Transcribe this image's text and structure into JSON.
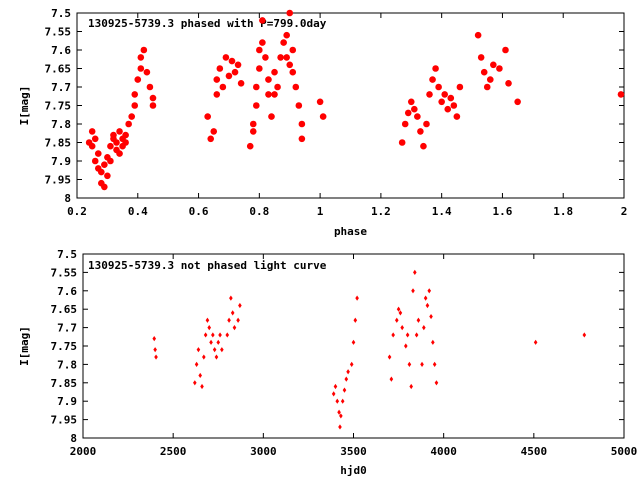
{
  "chart_data": [
    {
      "type": "scatter",
      "title": "130925-5739.3 phased with P=799.0day",
      "xlabel": "phase",
      "ylabel": "I[mag]",
      "xlim": [
        0.2,
        2.0
      ],
      "ylim": [
        7.5,
        8.0
      ],
      "y_inverted": true,
      "grid": false,
      "marker_color": "#ff0000",
      "marker": "filled-circle",
      "x_ticks": [
        "0.2",
        "0.4",
        "0.6",
        "0.8",
        "1",
        "1.2",
        "1.4",
        "1.6",
        "1.8",
        "2"
      ],
      "y_ticks": [
        "7.5",
        "7.55",
        "7.6",
        "7.65",
        "7.7",
        "7.75",
        "7.8",
        "7.85",
        "7.9",
        "7.95",
        "8"
      ],
      "points": [
        [
          0.24,
          7.85
        ],
        [
          0.25,
          7.86
        ],
        [
          0.25,
          7.82
        ],
        [
          0.26,
          7.84
        ],
        [
          0.26,
          7.9
        ],
        [
          0.27,
          7.88
        ],
        [
          0.27,
          7.92
        ],
        [
          0.28,
          7.93
        ],
        [
          0.28,
          7.96
        ],
        [
          0.29,
          7.91
        ],
        [
          0.29,
          7.97
        ],
        [
          0.3,
          7.94
        ],
        [
          0.3,
          7.89
        ],
        [
          0.31,
          7.9
        ],
        [
          0.31,
          7.86
        ],
        [
          0.32,
          7.84
        ],
        [
          0.32,
          7.83
        ],
        [
          0.33,
          7.87
        ],
        [
          0.33,
          7.85
        ],
        [
          0.34,
          7.88
        ],
        [
          0.34,
          7.82
        ],
        [
          0.35,
          7.86
        ],
        [
          0.35,
          7.84
        ],
        [
          0.36,
          7.83
        ],
        [
          0.36,
          7.85
        ],
        [
          0.37,
          7.8
        ],
        [
          0.38,
          7.78
        ],
        [
          0.39,
          7.75
        ],
        [
          0.39,
          7.72
        ],
        [
          0.4,
          7.68
        ],
        [
          0.41,
          7.62
        ],
        [
          0.41,
          7.65
        ],
        [
          0.42,
          7.6
        ],
        [
          0.43,
          7.66
        ],
        [
          0.44,
          7.7
        ],
        [
          0.45,
          7.73
        ],
        [
          0.45,
          7.75
        ],
        [
          0.63,
          7.78
        ],
        [
          0.64,
          7.84
        ],
        [
          0.65,
          7.82
        ],
        [
          0.66,
          7.72
        ],
        [
          0.66,
          7.68
        ],
        [
          0.67,
          7.65
        ],
        [
          0.68,
          7.7
        ],
        [
          0.69,
          7.62
        ],
        [
          0.7,
          7.67
        ],
        [
          0.71,
          7.63
        ],
        [
          0.72,
          7.66
        ],
        [
          0.73,
          7.64
        ],
        [
          0.74,
          7.69
        ],
        [
          0.77,
          7.86
        ],
        [
          0.78,
          7.82
        ],
        [
          0.78,
          7.8
        ],
        [
          0.79,
          7.75
        ],
        [
          0.79,
          7.7
        ],
        [
          0.8,
          7.65
        ],
        [
          0.8,
          7.6
        ],
        [
          0.81,
          7.58
        ],
        [
          0.81,
          7.52
        ],
        [
          0.82,
          7.62
        ],
        [
          0.83,
          7.68
        ],
        [
          0.83,
          7.72
        ],
        [
          0.84,
          7.78
        ],
        [
          0.85,
          7.72
        ],
        [
          0.85,
          7.66
        ],
        [
          0.86,
          7.7
        ],
        [
          0.87,
          7.62
        ],
        [
          0.88,
          7.58
        ],
        [
          0.89,
          7.56
        ],
        [
          0.89,
          7.62
        ],
        [
          0.9,
          7.5
        ],
        [
          0.9,
          7.64
        ],
        [
          0.91,
          7.6
        ],
        [
          0.91,
          7.66
        ],
        [
          0.92,
          7.7
        ],
        [
          0.93,
          7.75
        ],
        [
          0.94,
          7.8
        ],
        [
          0.94,
          7.84
        ],
        [
          1.0,
          7.74
        ],
        [
          1.01,
          7.78
        ],
        [
          1.27,
          7.85
        ],
        [
          1.28,
          7.8
        ],
        [
          1.29,
          7.77
        ],
        [
          1.3,
          7.74
        ],
        [
          1.31,
          7.76
        ],
        [
          1.32,
          7.78
        ],
        [
          1.33,
          7.82
        ],
        [
          1.34,
          7.86
        ],
        [
          1.35,
          7.8
        ],
        [
          1.36,
          7.72
        ],
        [
          1.37,
          7.68
        ],
        [
          1.38,
          7.65
        ],
        [
          1.39,
          7.7
        ],
        [
          1.4,
          7.74
        ],
        [
          1.41,
          7.72
        ],
        [
          1.42,
          7.76
        ],
        [
          1.43,
          7.73
        ],
        [
          1.44,
          7.75
        ],
        [
          1.45,
          7.78
        ],
        [
          1.46,
          7.7
        ],
        [
          1.52,
          7.56
        ],
        [
          1.53,
          7.62
        ],
        [
          1.54,
          7.66
        ],
        [
          1.55,
          7.7
        ],
        [
          1.56,
          7.68
        ],
        [
          1.57,
          7.64
        ],
        [
          1.59,
          7.65
        ],
        [
          1.61,
          7.6
        ],
        [
          1.62,
          7.69
        ],
        [
          1.65,
          7.74
        ],
        [
          1.99,
          7.72
        ]
      ]
    },
    {
      "type": "scatter",
      "title": "130925-5739.3 not phased light curve",
      "xlabel": "hjd0",
      "ylabel": "I[mag]",
      "xlim": [
        2000,
        5000
      ],
      "ylim": [
        7.5,
        8.0
      ],
      "y_inverted": true,
      "grid": false,
      "marker_color": "#ff0000",
      "marker": "diamond",
      "x_ticks": [
        "2000",
        "2500",
        "3000",
        "3500",
        "4000",
        "4500",
        "5000"
      ],
      "y_ticks": [
        "7.5",
        "7.55",
        "7.6",
        "7.65",
        "7.7",
        "7.75",
        "7.8",
        "7.85",
        "7.9",
        "7.95",
        "8"
      ],
      "points": [
        [
          2395,
          7.73
        ],
        [
          2400,
          7.76
        ],
        [
          2405,
          7.78
        ],
        [
          2620,
          7.85
        ],
        [
          2630,
          7.8
        ],
        [
          2640,
          7.76
        ],
        [
          2650,
          7.83
        ],
        [
          2660,
          7.86
        ],
        [
          2670,
          7.78
        ],
        [
          2680,
          7.72
        ],
        [
          2690,
          7.68
        ],
        [
          2700,
          7.7
        ],
        [
          2710,
          7.74
        ],
        [
          2720,
          7.72
        ],
        [
          2730,
          7.76
        ],
        [
          2740,
          7.78
        ],
        [
          2750,
          7.74
        ],
        [
          2760,
          7.72
        ],
        [
          2770,
          7.76
        ],
        [
          2800,
          7.72
        ],
        [
          2810,
          7.68
        ],
        [
          2820,
          7.62
        ],
        [
          2830,
          7.66
        ],
        [
          2840,
          7.7
        ],
        [
          2860,
          7.68
        ],
        [
          2870,
          7.64
        ],
        [
          3390,
          7.88
        ],
        [
          3400,
          7.86
        ],
        [
          3410,
          7.9
        ],
        [
          3420,
          7.93
        ],
        [
          3425,
          7.97
        ],
        [
          3430,
          7.94
        ],
        [
          3440,
          7.9
        ],
        [
          3450,
          7.87
        ],
        [
          3460,
          7.84
        ],
        [
          3470,
          7.82
        ],
        [
          3490,
          7.8
        ],
        [
          3500,
          7.74
        ],
        [
          3510,
          7.68
        ],
        [
          3520,
          7.62
        ],
        [
          3700,
          7.78
        ],
        [
          3710,
          7.84
        ],
        [
          3720,
          7.72
        ],
        [
          3740,
          7.68
        ],
        [
          3750,
          7.65
        ],
        [
          3760,
          7.66
        ],
        [
          3770,
          7.7
        ],
        [
          3790,
          7.75
        ],
        [
          3800,
          7.72
        ],
        [
          3810,
          7.8
        ],
        [
          3820,
          7.86
        ],
        [
          3830,
          7.6
        ],
        [
          3840,
          7.55
        ],
        [
          3850,
          7.72
        ],
        [
          3860,
          7.68
        ],
        [
          3880,
          7.8
        ],
        [
          3890,
          7.7
        ],
        [
          3900,
          7.62
        ],
        [
          3910,
          7.64
        ],
        [
          3920,
          7.6
        ],
        [
          3930,
          7.67
        ],
        [
          3940,
          7.74
        ],
        [
          3950,
          7.8
        ],
        [
          3960,
          7.85
        ],
        [
          4510,
          7.74
        ],
        [
          4780,
          7.72
        ]
      ]
    }
  ]
}
